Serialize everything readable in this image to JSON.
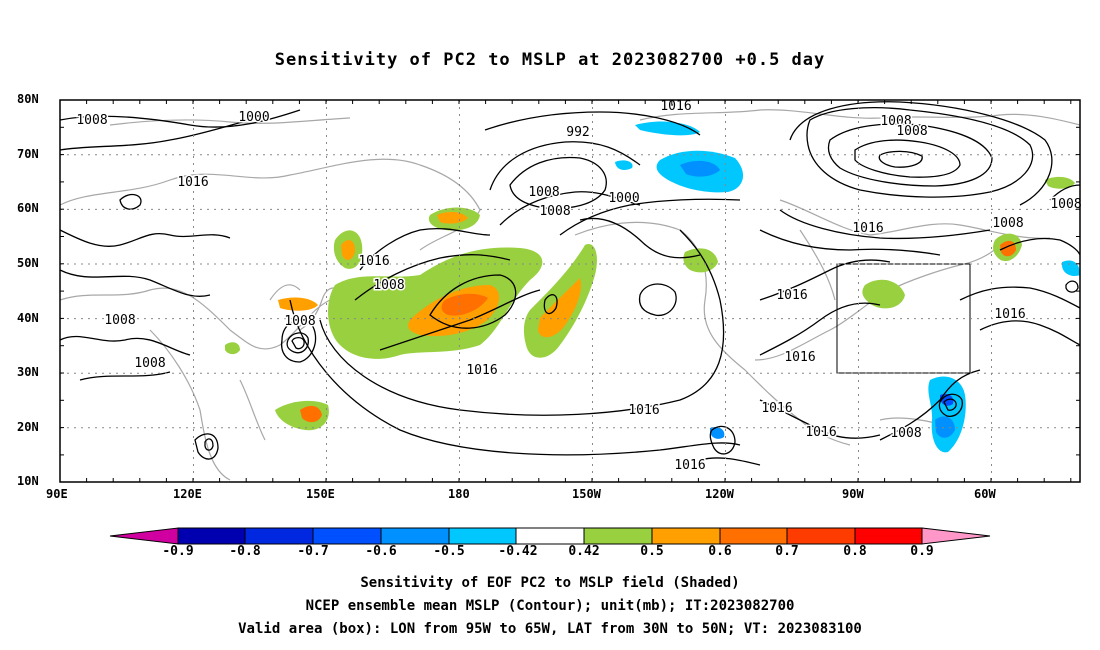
{
  "title": "Sensitivity of PC2 to MSLP at 2023082700 +0.5 day",
  "lat_labels": [
    "80N",
    "70N",
    "60N",
    "50N",
    "40N",
    "30N",
    "20N",
    "10N"
  ],
  "lon_labels": [
    "90E",
    "120E",
    "150E",
    "180",
    "150W",
    "120W",
    "90W",
    "60W"
  ],
  "contour_labels": [
    "1016",
    "1008",
    "1000",
    "992",
    "1008",
    "1008",
    "1016",
    "1008",
    "1000",
    "1008",
    "1016",
    "1008",
    "1016",
    "1008",
    "1008",
    "1008",
    "1016",
    "1016",
    "1016",
    "1016",
    "1016",
    "1016",
    "1016",
    "1008",
    "1008",
    "1016",
    "1008"
  ],
  "valid_box": {
    "lon_from": "95W",
    "lon_to": "65W",
    "lat_from": "30N",
    "lat_to": "50N"
  },
  "colorbar": {
    "labels": [
      "-0.9",
      "-0.8",
      "-0.7",
      "-0.6",
      "-0.5",
      "-0.42",
      "0.42",
      "0.5",
      "0.6",
      "0.7",
      "0.8",
      "0.9"
    ],
    "colors": {
      "under": "#d000a0",
      "b1": "#0000b0",
      "b2": "#0028e0",
      "b3": "#0050ff",
      "b4": "#0090ff",
      "b5": "#00c8ff",
      "neutral": "#ffffff",
      "p1": "#98d040",
      "p2": "#ffa000",
      "p3": "#ff7000",
      "p4": "#ff3c00",
      "p5": "#ff0000",
      "over": "#ff98c8"
    }
  },
  "captions": [
    "Sensitivity of EOF PC2 to MSLP field (Shaded)",
    "NCEP ensemble mean MSLP (Contour); unit(mb); IT:2023082700",
    "Valid area (box): LON from 95W to 65W, LAT from 30N to 50N; VT: 2023083100"
  ]
}
